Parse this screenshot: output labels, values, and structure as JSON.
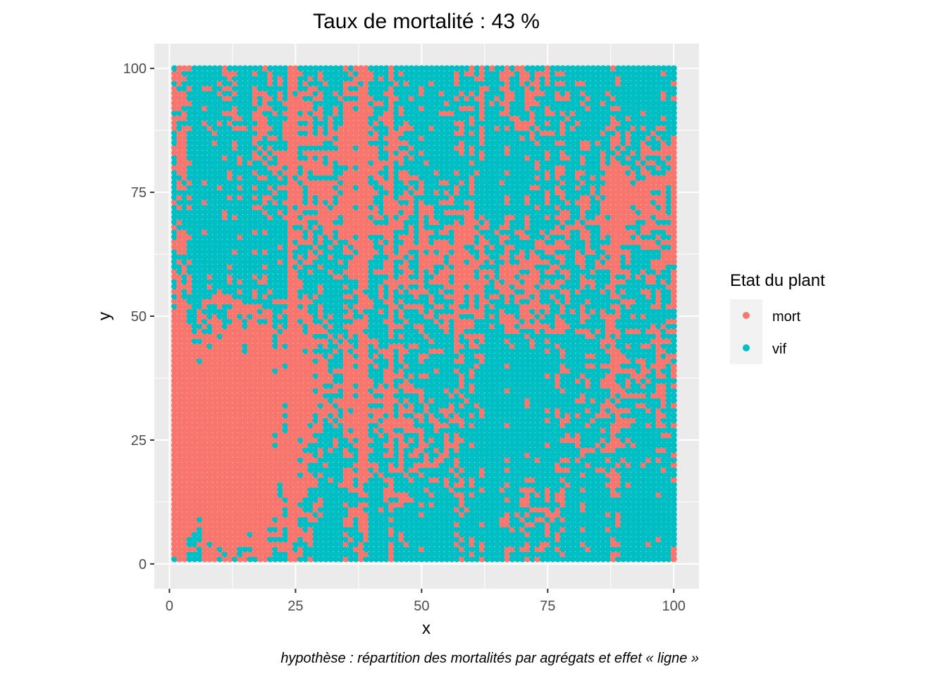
{
  "chart_data": {
    "type": "scatter",
    "title": "Taux de mortalité :  43 %",
    "xlabel": "x",
    "ylabel": "y",
    "xlim": [
      -3,
      105
    ],
    "ylim": [
      -5,
      105
    ],
    "xticks": [
      "0",
      "25",
      "50",
      "75",
      "100"
    ],
    "yticks": [
      "0",
      "25",
      "50",
      "75",
      "100"
    ],
    "grid": true,
    "legend": {
      "title": "Etat du plant",
      "position": "right",
      "entries": [
        {
          "label": "mort",
          "color": "#F8766D"
        },
        {
          "label": "vif",
          "color": "#00BFC4"
        }
      ]
    },
    "grid_points": {
      "x_range": [
        1,
        100
      ],
      "y_range": [
        1,
        100
      ],
      "step": 1
    },
    "mortality_rate_percent": 43,
    "caption": "hypothèse : répartition des mortalités par agrégats et effet « ligne »",
    "colors": {
      "panel": "#EBEBEB",
      "major_grid": "#FFFFFF",
      "mort": "#F8766D",
      "vif": "#00BFC4"
    }
  }
}
